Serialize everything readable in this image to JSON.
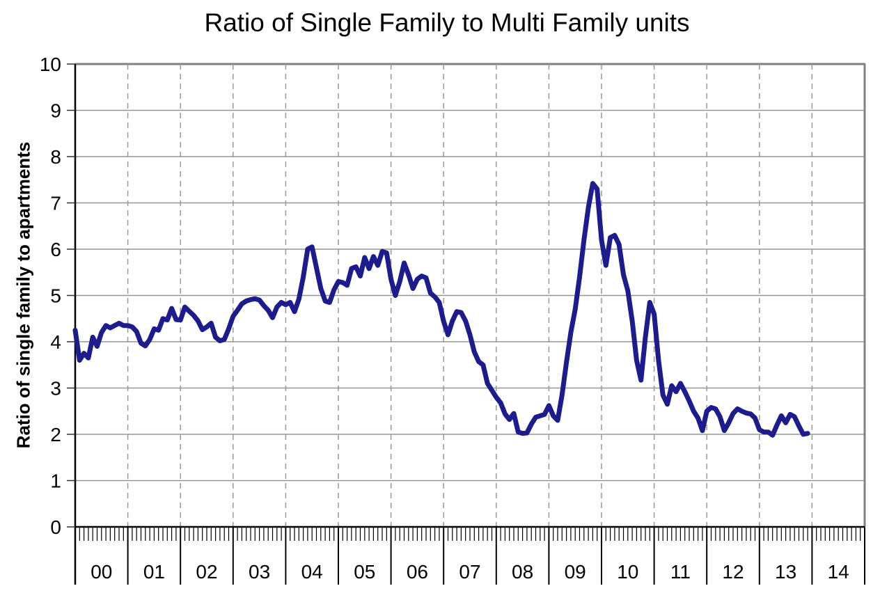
{
  "chart_data": {
    "type": "line",
    "title": "Ratio of Single Family to Multi Family units",
    "xlabel": "",
    "ylabel": "Ratio of single family to apartments",
    "ylim": [
      0,
      10
    ],
    "y_ticks": [
      0,
      1,
      2,
      3,
      4,
      5,
      6,
      7,
      8,
      9,
      10
    ],
    "x_tick_labels": [
      "00",
      "01",
      "02",
      "03",
      "04",
      "05",
      "06",
      "07",
      "08",
      "09",
      "10",
      "11",
      "12",
      "13",
      "14"
    ],
    "x_frequency": "monthly",
    "grid": {
      "horizontal": "solid",
      "vertical": "dashed"
    },
    "legend_position": "none",
    "colors": {
      "grid": "#969696",
      "grid_dashed": "#999999",
      "border": "#808080",
      "axis": "#000000",
      "tick": "#333333"
    },
    "series": [
      {
        "name": "Ratio of single family to apartments",
        "color": "#1c1c8f",
        "start": "2000-01",
        "end": "2013-12",
        "values": [
          4.25,
          3.6,
          3.75,
          3.65,
          4.1,
          3.9,
          4.2,
          4.35,
          4.3,
          4.35,
          4.4,
          4.35,
          4.35,
          4.32,
          4.22,
          3.97,
          3.91,
          4.05,
          4.28,
          4.25,
          4.5,
          4.47,
          4.72,
          4.48,
          4.47,
          4.75,
          4.66,
          4.57,
          4.45,
          4.26,
          4.32,
          4.4,
          4.1,
          4.02,
          4.05,
          4.28,
          4.55,
          4.68,
          4.82,
          4.88,
          4.91,
          4.93,
          4.9,
          4.78,
          4.68,
          4.52,
          4.75,
          4.85,
          4.8,
          4.85,
          4.65,
          4.92,
          5.4,
          6.0,
          6.05,
          5.6,
          5.15,
          4.88,
          4.85,
          5.12,
          5.3,
          5.28,
          5.22,
          5.58,
          5.62,
          5.42,
          5.82,
          5.58,
          5.84,
          5.65,
          5.95,
          5.92,
          5.35,
          5.0,
          5.3,
          5.7,
          5.45,
          5.15,
          5.35,
          5.42,
          5.38,
          5.05,
          4.97,
          4.85,
          4.44,
          4.15,
          4.45,
          4.65,
          4.63,
          4.45,
          4.15,
          3.78,
          3.57,
          3.5,
          3.1,
          2.95,
          2.8,
          2.68,
          2.44,
          2.32,
          2.45,
          2.05,
          2.02,
          2.03,
          2.22,
          2.37,
          2.4,
          2.43,
          2.62,
          2.4,
          2.3,
          2.85,
          3.55,
          4.2,
          4.7,
          5.4,
          6.2,
          6.9,
          7.42,
          7.3,
          6.2,
          5.65,
          6.25,
          6.3,
          6.1,
          5.45,
          5.1,
          4.45,
          3.6,
          3.17,
          4.1,
          4.85,
          4.6,
          3.6,
          2.85,
          2.65,
          3.05,
          2.92,
          3.1,
          2.92,
          2.72,
          2.5,
          2.35,
          2.08,
          2.5,
          2.58,
          2.55,
          2.38,
          2.08,
          2.25,
          2.45,
          2.55,
          2.5,
          2.46,
          2.44,
          2.35,
          2.1,
          2.05,
          2.05,
          1.98,
          2.2,
          2.4,
          2.25,
          2.43,
          2.38,
          2.18,
          2.0,
          2.02
        ]
      }
    ]
  }
}
